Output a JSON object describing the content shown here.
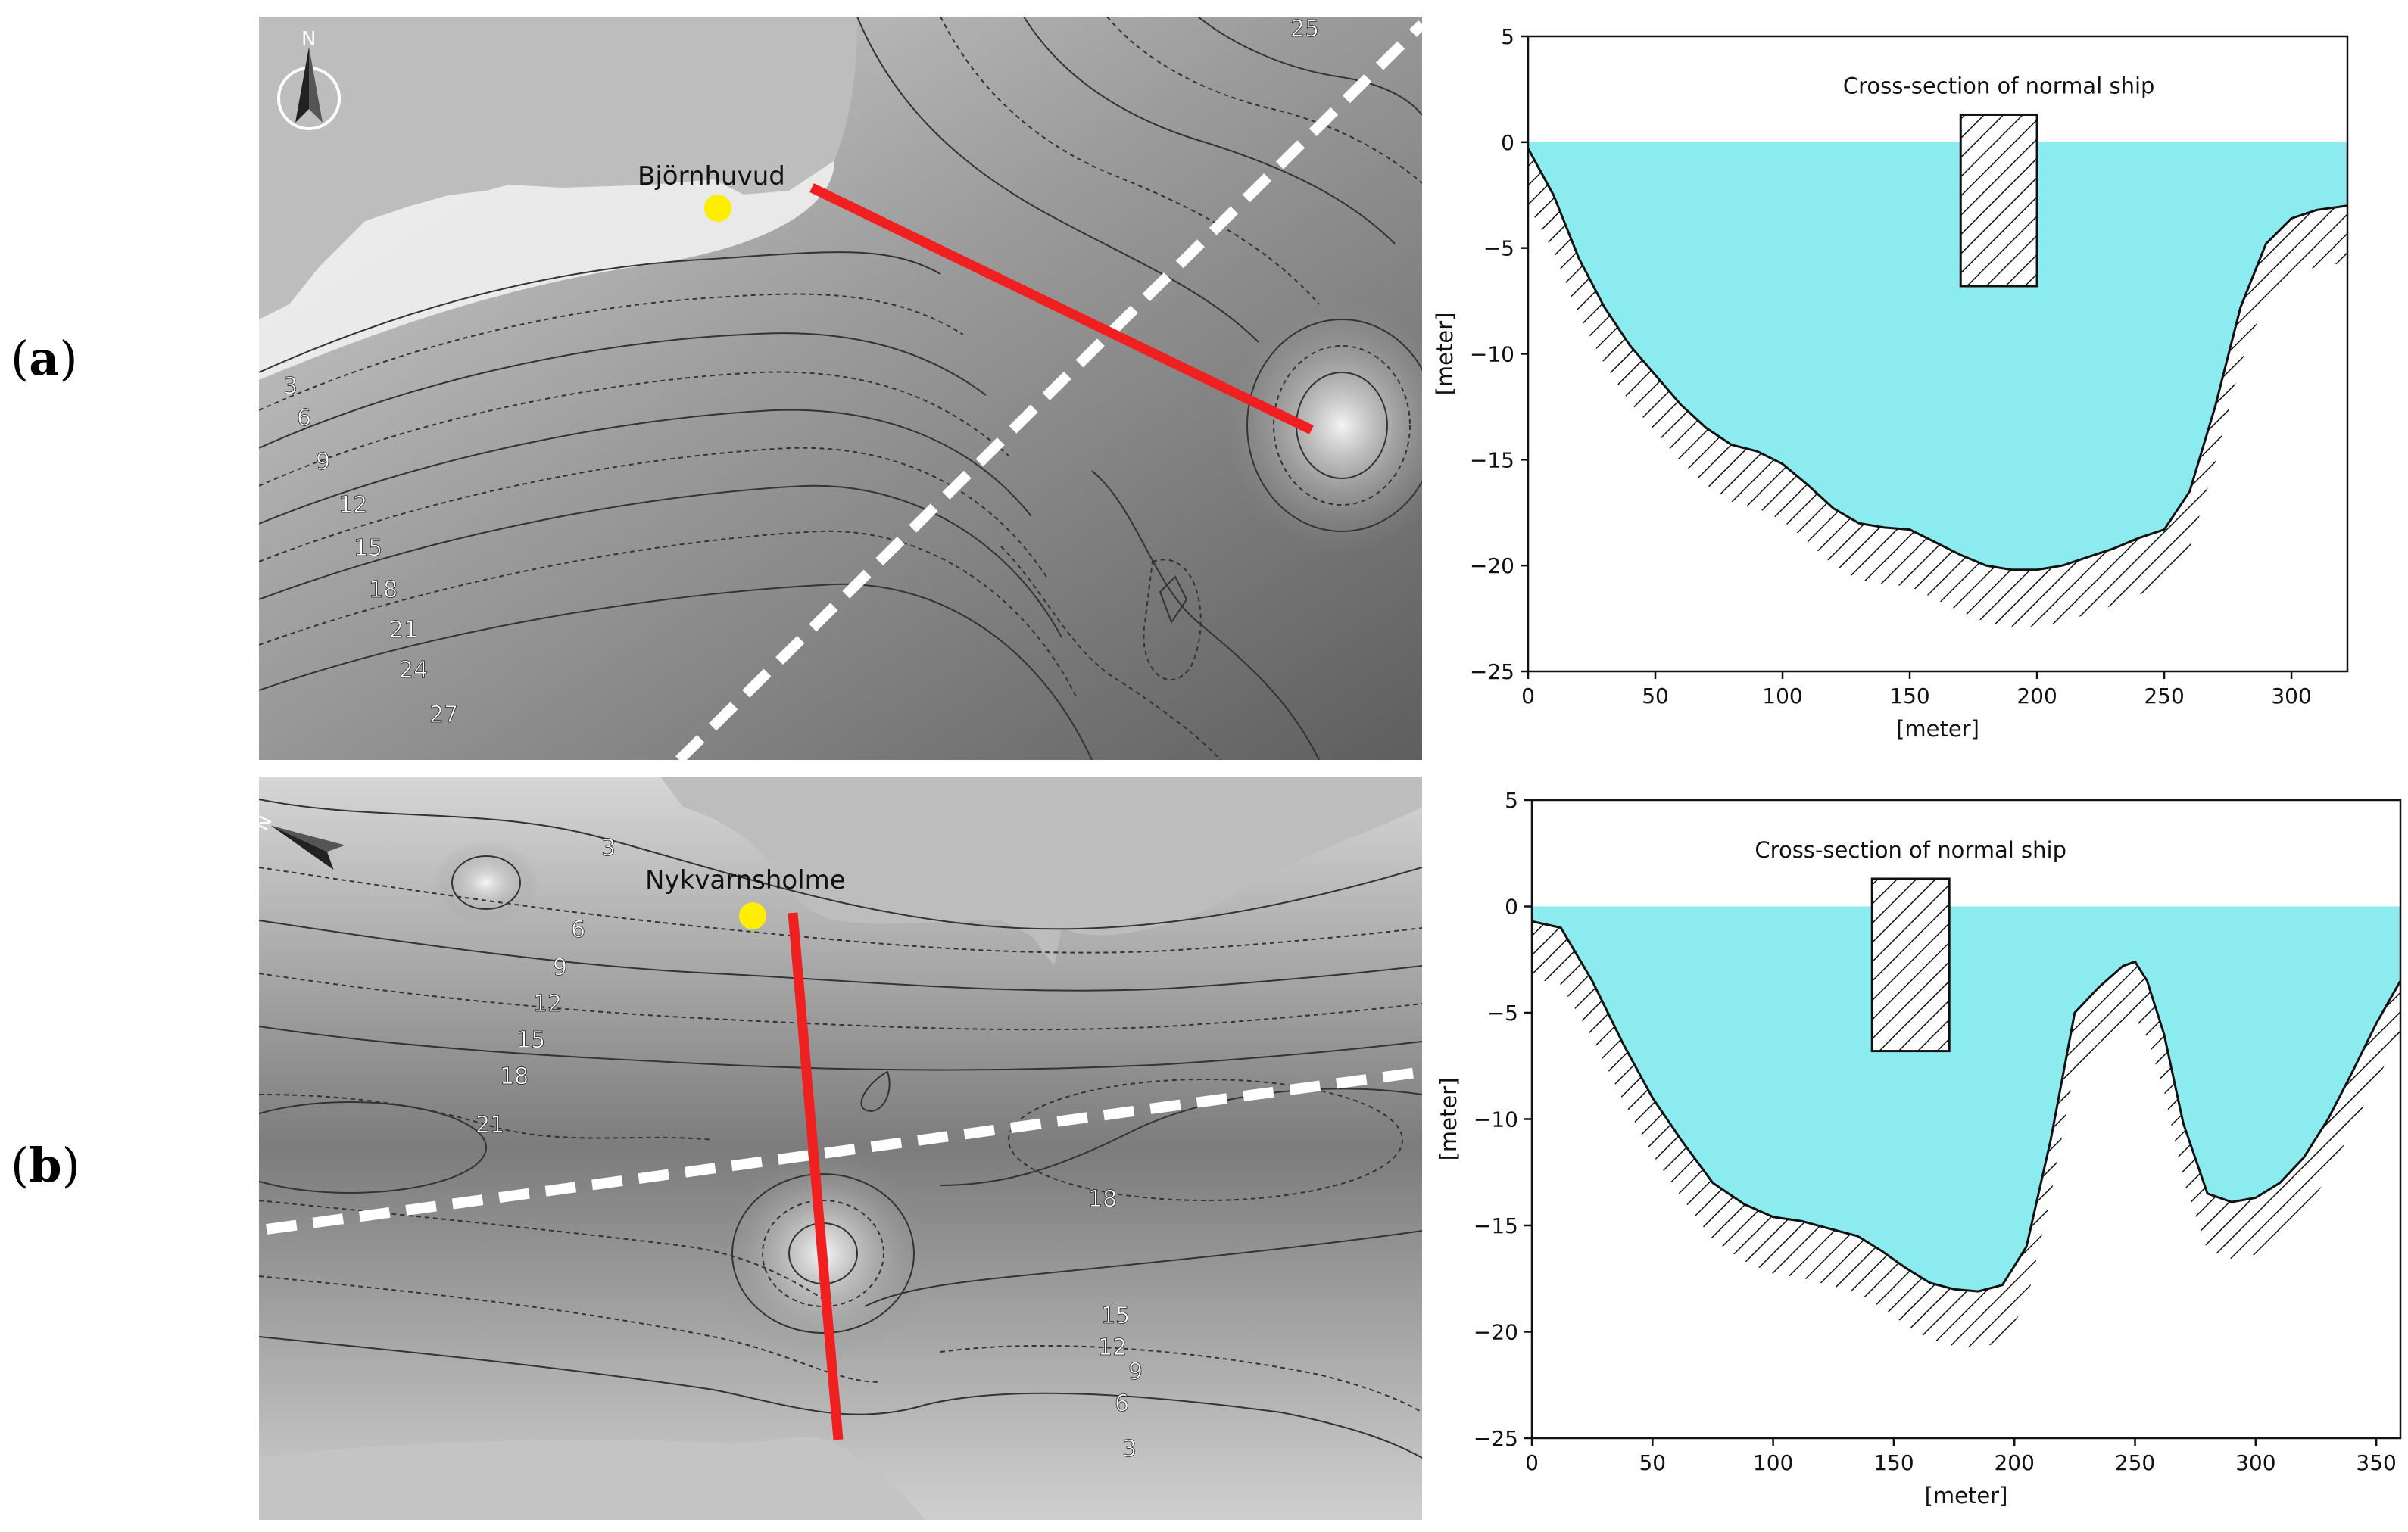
{
  "panels": [
    {
      "label_letter": "a",
      "map": {
        "place_name": "Björnhuvud",
        "north_letter": "N",
        "contour_labels": [
          "3",
          "6",
          "9",
          "12",
          "15",
          "18",
          "21",
          "24",
          "27",
          "25"
        ]
      },
      "chart_data": {
        "type": "area",
        "annotation": "Cross-section of normal ship",
        "xlabel": "[meter]",
        "ylabel": "[meter]",
        "xlim": [
          0,
          322
        ],
        "ylim": [
          -25,
          5
        ],
        "xticks": [
          0,
          50,
          100,
          150,
          200,
          250,
          300
        ],
        "yticks": [
          5,
          0,
          -5,
          -10,
          -15,
          -20,
          -25
        ],
        "water_level": 0,
        "water_color": "#8BEBEE",
        "ship": {
          "x_start": 170,
          "x_end": 200,
          "top": 1.3,
          "bottom": -6.8
        },
        "seabed": {
          "x": [
            0,
            10,
            20,
            30,
            40,
            50,
            60,
            70,
            80,
            90,
            100,
            110,
            120,
            130,
            140,
            150,
            160,
            170,
            180,
            190,
            200,
            210,
            220,
            230,
            240,
            250,
            260,
            270,
            280,
            290,
            300,
            310,
            322
          ],
          "y": [
            -0.3,
            -2.5,
            -5.5,
            -7.8,
            -9.6,
            -11.0,
            -12.4,
            -13.5,
            -14.3,
            -14.6,
            -15.2,
            -16.2,
            -17.3,
            -18.0,
            -18.2,
            -18.3,
            -18.9,
            -19.5,
            -20.0,
            -20.2,
            -20.2,
            -20.0,
            -19.6,
            -19.2,
            -18.7,
            -18.3,
            -16.5,
            -12.5,
            -7.8,
            -4.8,
            -3.6,
            -3.2,
            -3.0
          ]
        }
      }
    },
    {
      "label_letter": "b",
      "map": {
        "place_name": "Nykvarnsholme",
        "north_letter": "N",
        "contour_labels": [
          "3",
          "6",
          "9",
          "12",
          "15",
          "18",
          "21",
          "18",
          "15",
          "12",
          "9",
          "6",
          "3"
        ]
      },
      "chart_data": {
        "type": "area",
        "annotation": "Cross-section of normal ship",
        "xlabel": "[meter]",
        "ylabel": "[meter]",
        "xlim": [
          0,
          360
        ],
        "ylim": [
          -25,
          5
        ],
        "xticks": [
          0,
          50,
          100,
          150,
          200,
          250,
          300,
          350
        ],
        "yticks": [
          5,
          0,
          -5,
          -10,
          -15,
          -20,
          -25
        ],
        "water_level": 0,
        "water_color": "#8BEBEE",
        "ship": {
          "x_start": 141,
          "x_end": 173,
          "top": 1.3,
          "bottom": -6.8
        },
        "seabed": {
          "x": [
            0,
            12,
            25,
            38,
            50,
            62,
            75,
            88,
            100,
            112,
            125,
            135,
            145,
            155,
            165,
            175,
            185,
            195,
            205,
            215,
            225,
            235,
            245,
            250,
            255,
            262,
            270,
            280,
            290,
            300,
            310,
            320,
            330,
            340,
            350,
            360
          ],
          "y": [
            -0.7,
            -1.0,
            -3.5,
            -6.5,
            -9.0,
            -11.0,
            -13.0,
            -14.0,
            -14.6,
            -14.8,
            -15.2,
            -15.5,
            -16.2,
            -17.0,
            -17.7,
            -18.0,
            -18.1,
            -17.8,
            -16.0,
            -11.0,
            -5.0,
            -3.8,
            -2.8,
            -2.6,
            -3.5,
            -6.0,
            -10.2,
            -13.5,
            -13.9,
            -13.7,
            -13.0,
            -11.8,
            -10.0,
            -7.8,
            -5.5,
            -3.5
          ]
        }
      }
    }
  ]
}
